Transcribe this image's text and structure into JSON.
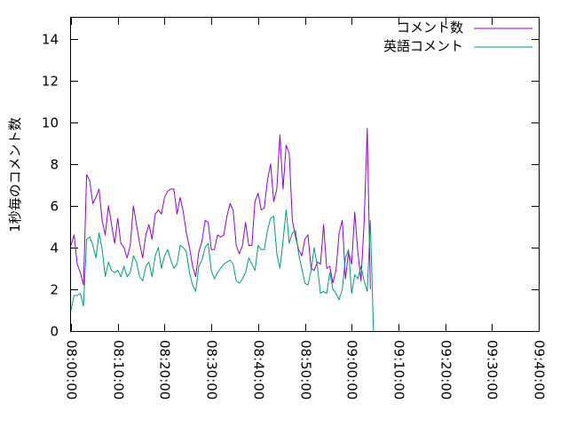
{
  "chart_data": {
    "type": "line",
    "title": "",
    "xlabel": "",
    "ylabel": "1秒毎のコメント数",
    "ylim": [
      0,
      15
    ],
    "y_ticks": [
      0,
      2,
      4,
      6,
      8,
      10,
      12,
      14
    ],
    "xlim": [
      "08:00:00",
      "09:40:00"
    ],
    "x_ticks": [
      "08:00:00",
      "08:10:00",
      "08:20:00",
      "08:30:00",
      "08:40:00",
      "08:50:00",
      "09:00:00",
      "09:10:00",
      "09:20:00",
      "09:30:00",
      "09:40:00"
    ],
    "grid": false,
    "legend_position": "top-right",
    "x_step_seconds": 40,
    "series": [
      {
        "name": "コメント数",
        "color": "#9400d3",
        "x_start": "08:00:00",
        "values": [
          4.1,
          4.6,
          3.2,
          2.8,
          2.2,
          7.5,
          7.2,
          6.1,
          6.4,
          6.8,
          5.3,
          4.6,
          6.0,
          5.1,
          4.2,
          5.4,
          4.2,
          4.0,
          3.5,
          4.1,
          6.0,
          5.1,
          4.2,
          3.5,
          4.6,
          5.1,
          4.4,
          5.6,
          5.8,
          5.6,
          6.4,
          6.7,
          6.8,
          6.8,
          5.6,
          6.4,
          5.7,
          4.7,
          4.0,
          3.1,
          2.6,
          3.8,
          4.3,
          5.3,
          5.2,
          3.9,
          3.9,
          4.6,
          4.5,
          4.6,
          5.5,
          6.1,
          5.8,
          4.1,
          3.7,
          4.1,
          5.2,
          4.1,
          4.1,
          6.2,
          6.6,
          5.8,
          5.9,
          7.2,
          8.0,
          6.2,
          6.8,
          9.4,
          6.8,
          8.9,
          8.5,
          5.3,
          4.5,
          3.9,
          3.6,
          4.4,
          4.6,
          3.0,
          2.9,
          3.3,
          3.2,
          5.1,
          3.0,
          3.1,
          2.3,
          2.9,
          4.7,
          5.3,
          2.5,
          3.8,
          3.2,
          5.7,
          3.8,
          2.4,
          5.2,
          9.7,
          2.0
        ]
      },
      {
        "name": "英語コメント",
        "color": "#009e73",
        "x_start": "08:00:00",
        "values": [
          1.0,
          1.7,
          1.7,
          1.8,
          1.2,
          4.4,
          4.5,
          4.1,
          3.5,
          4.7,
          3.9,
          2.6,
          3.3,
          2.9,
          2.8,
          2.9,
          2.6,
          3.1,
          2.6,
          2.8,
          3.6,
          3.3,
          2.6,
          2.4,
          3.1,
          3.3,
          2.6,
          3.6,
          4.0,
          3.0,
          3.6,
          3.9,
          3.4,
          3.0,
          3.2,
          4.1,
          4.0,
          3.8,
          2.8,
          2.2,
          1.9,
          3.1,
          3.4,
          4.0,
          4.2,
          2.9,
          2.5,
          2.8,
          3.0,
          3.2,
          3.3,
          3.4,
          3.2,
          2.4,
          2.3,
          2.5,
          2.8,
          3.5,
          3.2,
          2.9,
          4.1,
          3.9,
          3.9,
          4.8,
          5.4,
          5.5,
          3.7,
          3.0,
          4.3,
          5.8,
          4.2,
          4.7,
          4.8,
          3.7,
          3.0,
          2.3,
          2.2,
          2.9,
          4.0,
          3.1,
          1.8,
          1.9,
          1.8,
          2.8,
          2.0,
          1.8,
          1.5,
          2.0,
          3.5,
          3.9,
          1.8,
          2.7,
          2.5,
          3.1,
          2.4,
          1.9,
          5.3,
          0.0
        ]
      }
    ]
  }
}
